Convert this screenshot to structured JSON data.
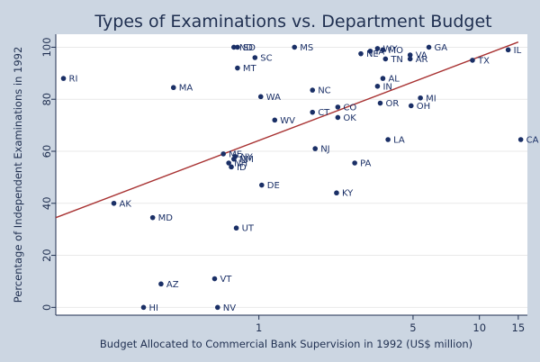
{
  "chart_data": {
    "type": "scatter",
    "title": "Types of Examinations vs. Department Budget",
    "xlabel": "Budget Allocated to Commercial Bank Supervision in 1992 (US$ million)",
    "ylabel": "Percentage of Independent Examinations in 1992",
    "x_scale": "log",
    "xlim": [
      0.12,
      16.5
    ],
    "ylim": [
      -3,
      105
    ],
    "x_ticks": [
      {
        "value": 1,
        "label": "1"
      },
      {
        "value": 5,
        "label": "5"
      },
      {
        "value": 10,
        "label": "10"
      },
      {
        "value": 15,
        "label": "15"
      }
    ],
    "y_ticks": [
      {
        "value": 0,
        "label": "0"
      },
      {
        "value": 20,
        "label": "20"
      },
      {
        "value": 40,
        "label": "40"
      },
      {
        "value": 60,
        "label": "60"
      },
      {
        "value": 80,
        "label": "80"
      },
      {
        "value": 100,
        "label": "100"
      }
    ],
    "grid": true,
    "fit_line": {
      "x": [
        0.12,
        15
      ],
      "y": [
        34.5,
        102
      ]
    },
    "colors": {
      "background": "#ccd6e2",
      "plot": "#ffffff",
      "points": "#1a2f66",
      "fit_line": "#a83232",
      "title": "#1f2f50"
    },
    "points": [
      {
        "label": "RI",
        "x": 0.13,
        "y": 88
      },
      {
        "label": "AK",
        "x": 0.22,
        "y": 40
      },
      {
        "label": "MD",
        "x": 0.33,
        "y": 34.5
      },
      {
        "label": "MA",
        "x": 0.41,
        "y": 84.5
      },
      {
        "label": "AZ",
        "x": 0.36,
        "y": 9
      },
      {
        "label": "HI",
        "x": 0.3,
        "y": 0
      },
      {
        "label": "VT",
        "x": 0.63,
        "y": 11
      },
      {
        "label": "NV",
        "x": 0.65,
        "y": 0
      },
      {
        "label": "ND",
        "x": 0.77,
        "y": 100
      },
      {
        "label": "SD",
        "x": 0.8,
        "y": 100
      },
      {
        "label": "MT",
        "x": 0.8,
        "y": 92
      },
      {
        "label": "SC",
        "x": 0.96,
        "y": 96
      },
      {
        "label": "MS",
        "x": 1.45,
        "y": 100
      },
      {
        "label": "WA",
        "x": 1.02,
        "y": 81
      },
      {
        "label": "WV",
        "x": 1.18,
        "y": 72
      },
      {
        "label": "NC",
        "x": 1.75,
        "y": 83.5
      },
      {
        "label": "CT",
        "x": 1.75,
        "y": 75
      },
      {
        "label": "CO",
        "x": 2.28,
        "y": 77
      },
      {
        "label": "OK",
        "x": 2.28,
        "y": 73
      },
      {
        "label": "NJ",
        "x": 1.8,
        "y": 61
      },
      {
        "label": "PA",
        "x": 2.72,
        "y": 55.5
      },
      {
        "label": "KY",
        "x": 2.25,
        "y": 44
      },
      {
        "label": "DE",
        "x": 1.03,
        "y": 47
      },
      {
        "label": "UT",
        "x": 0.79,
        "y": 30.5
      },
      {
        "label": "ME",
        "x": 0.69,
        "y": 59
      },
      {
        "label": "NY",
        "x": 0.78,
        "y": 58
      },
      {
        "label": "NM",
        "x": 0.77,
        "y": 57
      },
      {
        "label": "NH",
        "x": 0.73,
        "y": 55.5
      },
      {
        "label": "ID",
        "x": 0.75,
        "y": 54
      },
      {
        "label": "NE",
        "x": 2.9,
        "y": 97.5
      },
      {
        "label": "IA",
        "x": 3.2,
        "y": 98.5
      },
      {
        "label": "WY",
        "x": 3.45,
        "y": 99.5
      },
      {
        "label": "MO",
        "x": 3.65,
        "y": 99
      },
      {
        "label": "TN",
        "x": 3.75,
        "y": 95.5
      },
      {
        "label": "GA",
        "x": 5.9,
        "y": 100
      },
      {
        "label": "VA",
        "x": 4.85,
        "y": 97
      },
      {
        "label": "AR",
        "x": 4.85,
        "y": 95.5
      },
      {
        "label": "AL",
        "x": 3.65,
        "y": 88
      },
      {
        "label": "IN",
        "x": 3.45,
        "y": 85
      },
      {
        "label": "OR",
        "x": 3.55,
        "y": 78.5
      },
      {
        "label": "MI",
        "x": 5.4,
        "y": 80.5
      },
      {
        "label": "OH",
        "x": 4.9,
        "y": 77.5
      },
      {
        "label": "LA",
        "x": 3.85,
        "y": 64.5
      },
      {
        "label": "TX",
        "x": 9.3,
        "y": 95
      },
      {
        "label": "IL",
        "x": 13.5,
        "y": 99
      },
      {
        "label": "CA",
        "x": 15.4,
        "y": 64.5
      }
    ]
  }
}
